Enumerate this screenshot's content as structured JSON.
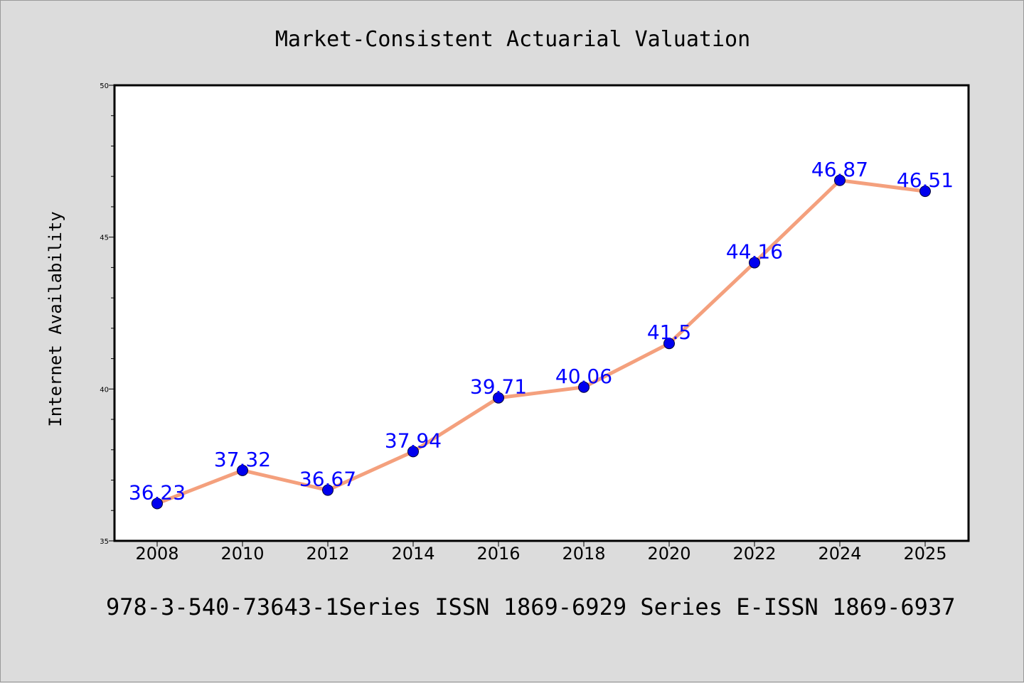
{
  "chart_data": {
    "type": "line",
    "title": "Market-Consistent Actuarial Valuation",
    "ylabel": "Internet Availability",
    "xlabel": "",
    "footer": "978-3-540-73643-1Series ISSN 1869-6929 Series E-ISSN 1869-6937",
    "categories": [
      "2008",
      "2010",
      "2012",
      "2014",
      "2016",
      "2018",
      "2020",
      "2022",
      "2024",
      "2025"
    ],
    "series": [
      {
        "values": [
          36.23,
          37.32,
          36.67,
          37.94,
          39.71,
          40.06,
          41.5,
          44.16,
          46.87,
          46.51
        ],
        "labels": [
          "36.23",
          "37.32",
          "36.67",
          "37.94",
          "39.71",
          "40.06",
          "41.5",
          "44.16",
          "46.87",
          "46.51"
        ],
        "line_color": "#f4a07d",
        "marker_color": "#0000ee",
        "label_color": "#0000ff"
      }
    ],
    "ylim": [
      35,
      50
    ],
    "yticks": [
      "35",
      "40",
      "45",
      "50"
    ],
    "grid": false,
    "legend": "none",
    "background": "#dcdcdc",
    "plot_background": "#ffffff"
  }
}
